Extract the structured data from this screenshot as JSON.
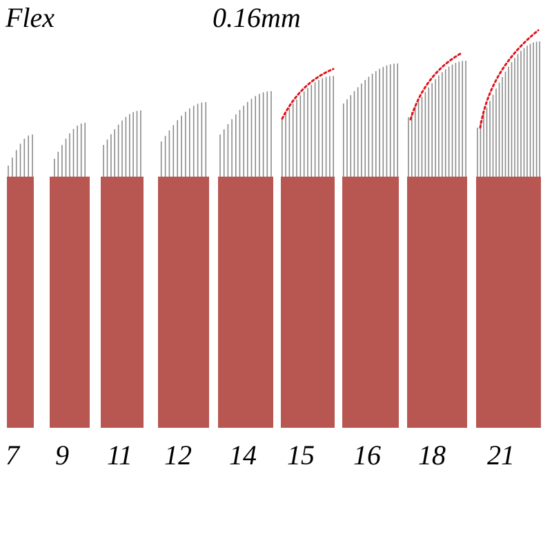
{
  "header": {
    "type_label": "Flex",
    "size_label": "0.16mm"
  },
  "colors": {
    "blade_body": "#b85752",
    "needle": "#8a8a8a",
    "highlight_curve": "#e0141b",
    "background": "#ffffff"
  },
  "blades": [
    {
      "pin_count": "7",
      "highlighted": false
    },
    {
      "pin_count": "9",
      "highlighted": false
    },
    {
      "pin_count": "11",
      "highlighted": false
    },
    {
      "pin_count": "12",
      "highlighted": false
    },
    {
      "pin_count": "14",
      "highlighted": false
    },
    {
      "pin_count": "15",
      "highlighted": true
    },
    {
      "pin_count": "16",
      "highlighted": false
    },
    {
      "pin_count": "18",
      "highlighted": true
    },
    {
      "pin_count": "21",
      "highlighted": true
    }
  ]
}
